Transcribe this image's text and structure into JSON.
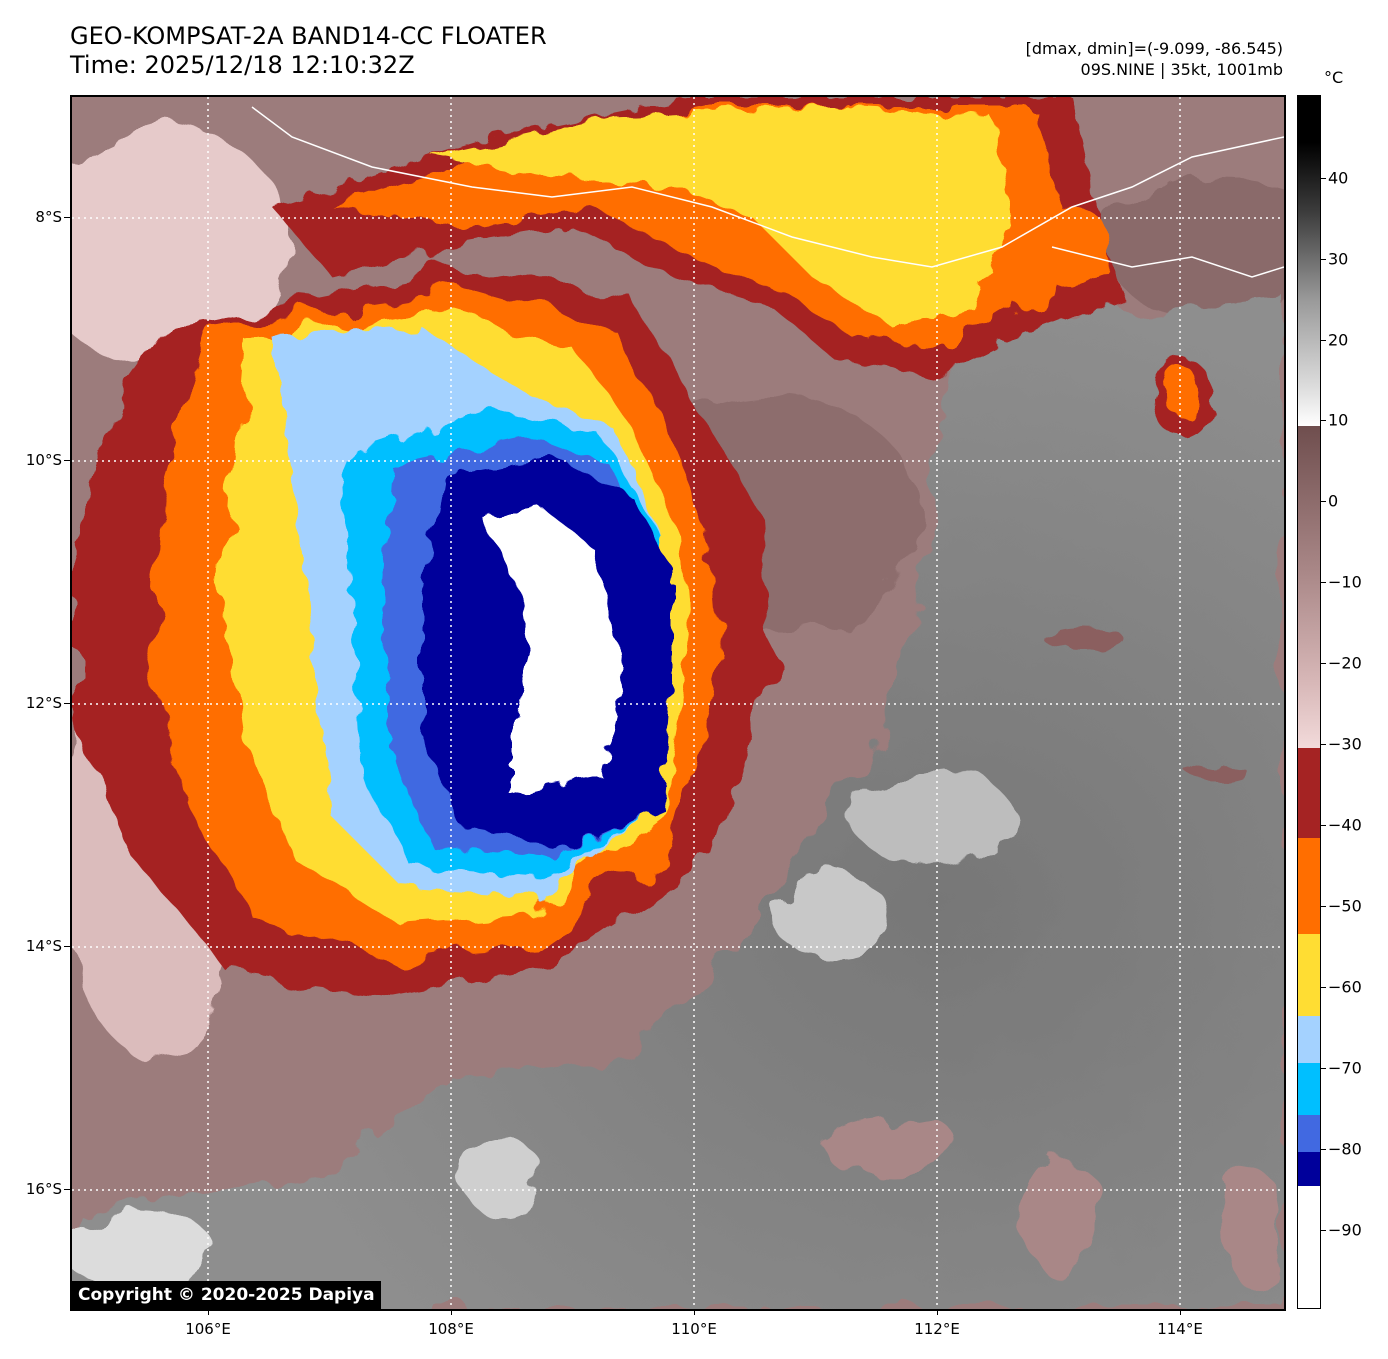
{
  "header": {
    "title_line1": "GEO-KOMPSAT-2A BAND14-CC FLOATER",
    "title_line2": "Time: 2025/12/18 12:10:32Z",
    "range_text": "[dmax, dmin]=(-9.099, -86.545)",
    "storm_text": "09S.NINE | 35kt, 1001mb"
  },
  "map": {
    "lat_labels": [
      "8°S",
      "10°S",
      "12°S",
      "14°S",
      "16°S"
    ],
    "lon_labels": [
      "106°E",
      "108°E",
      "110°E",
      "112°E",
      "114°E"
    ],
    "copyright": "Copyright © 2020-2025 Dapiya"
  },
  "colorbar": {
    "unit": "°C",
    "tick_labels": [
      "40",
      "30",
      "20",
      "10",
      "0",
      "−10",
      "−20",
      "−30",
      "−40",
      "−50",
      "−60",
      "−70",
      "−80",
      "−90"
    ],
    "colors": {
      "black": "#000000",
      "gray_dark": "#3c3c3c",
      "gray_light": "#dcdcdc",
      "white": "#ffffff",
      "brown_dark": "#6f4e4e",
      "brown_mid": "#a98787",
      "pink_light": "#f2dada",
      "red_dark": "#a52323",
      "orange": "#ff6e00",
      "yellow": "#ffdd33",
      "blue_light": "#a4d2ff",
      "cyan": "#00bfff",
      "blue": "#4169e1",
      "navy": "#00009b"
    }
  }
}
